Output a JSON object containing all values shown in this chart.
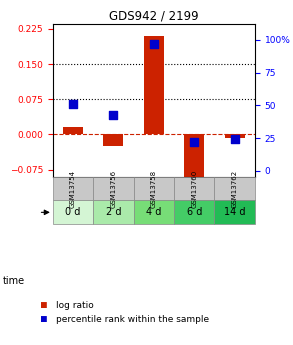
{
  "title": "GDS942 / 2199",
  "samples": [
    "GSM13754",
    "GSM13756",
    "GSM13758",
    "GSM13760",
    "GSM13762"
  ],
  "time_labels": [
    "0 d",
    "2 d",
    "4 d",
    "6 d",
    "14 d"
  ],
  "log_ratio": [
    0.015,
    -0.025,
    0.21,
    -0.09,
    -0.008
  ],
  "percentile_rank": [
    51,
    43,
    97,
    22,
    24
  ],
  "ylim_left": [
    -0.09,
    0.235
  ],
  "ylim_right": [
    -4.28,
    111.9
  ],
  "yticks_left": [
    -0.075,
    0,
    0.075,
    0.15,
    0.225
  ],
  "yticks_right": [
    0,
    25,
    50,
    75,
    100
  ],
  "hlines": [
    0.075,
    0.15
  ],
  "bar_color": "#cc2200",
  "dot_color": "#0000cc",
  "zero_line_color": "#cc2200",
  "background_color": "#ffffff",
  "sample_bg_color": "#c8c8c8",
  "time_bg_colors": [
    "#d4f5d4",
    "#aaeaaa",
    "#77dd77",
    "#44cc66",
    "#22bb55"
  ],
  "bar_width": 0.5,
  "dot_size": 30,
  "legend_items": [
    "log ratio",
    "percentile rank within the sample"
  ]
}
